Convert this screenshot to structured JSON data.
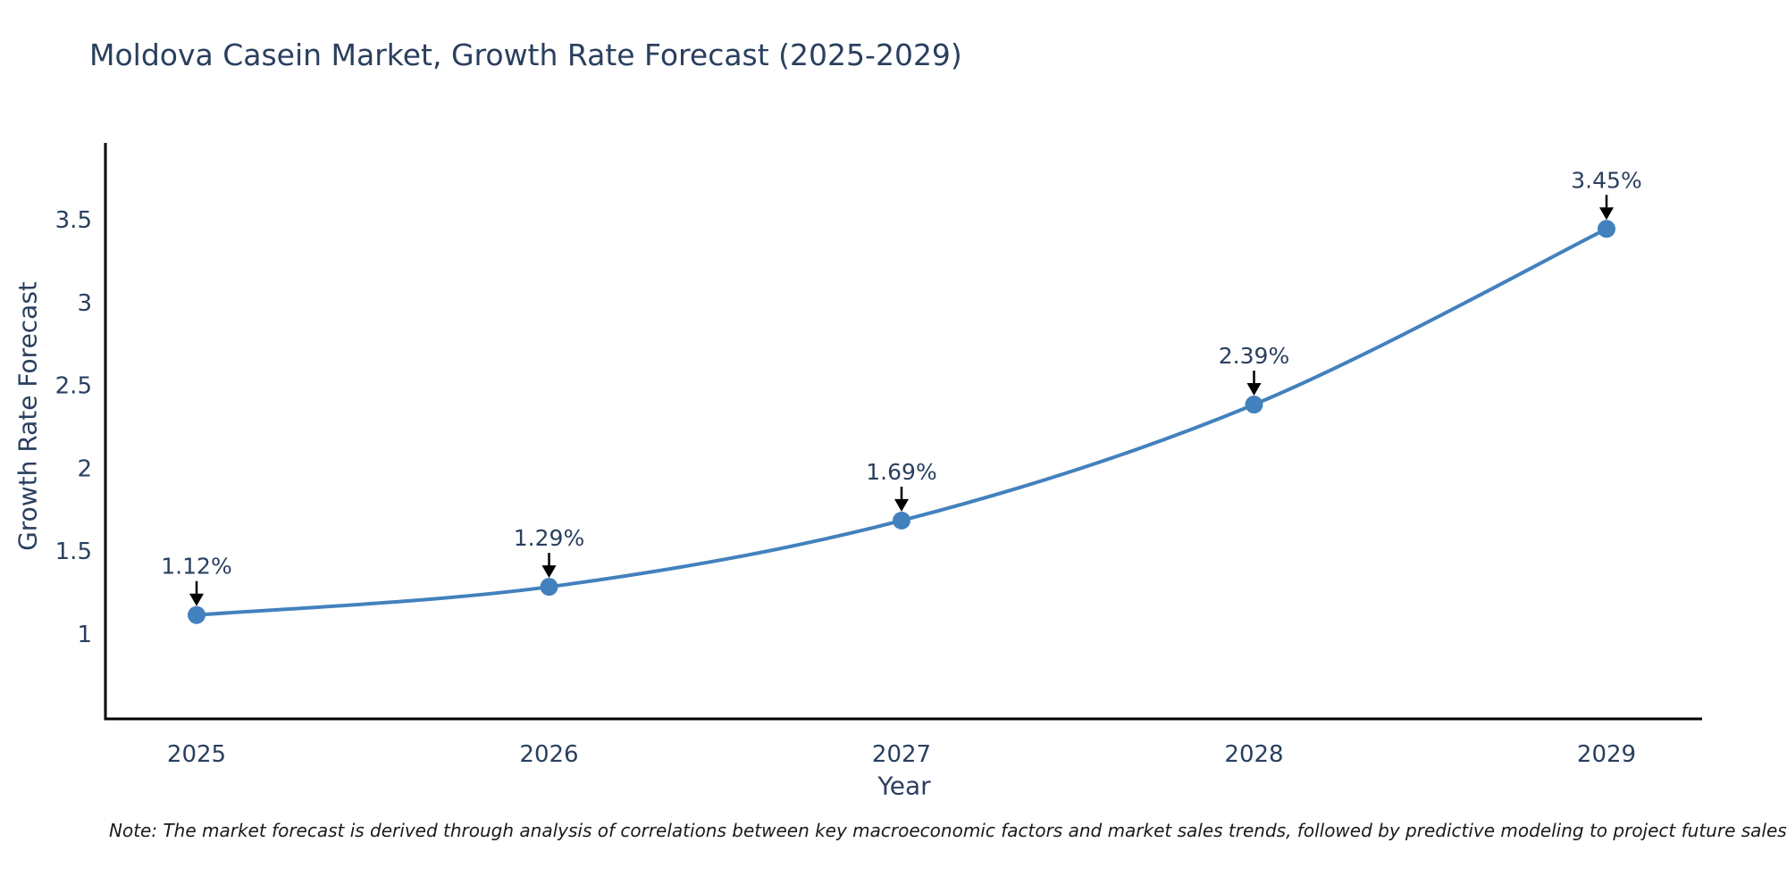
{
  "title": "Moldova Casein Market, Growth Rate Forecast (2025-2029)",
  "note": "Note: The market forecast is derived through analysis of correlations between key macroeconomic factors and market sales trends, followed by predictive modeling to project future sales",
  "chart_data": {
    "type": "line",
    "title": "Moldova Casein Market, Growth Rate Forecast (2025-2029)",
    "xlabel": "Year",
    "ylabel": "Growth Rate Forecast",
    "categories": [
      "2025",
      "2026",
      "2027",
      "2028",
      "2029"
    ],
    "series": [
      {
        "name": "Growth Rate Forecast",
        "values": [
          1.12,
          1.29,
          1.69,
          2.39,
          3.45
        ]
      }
    ],
    "point_labels": [
      "1.12%",
      "1.29%",
      "1.69%",
      "2.39%",
      "3.45%"
    ],
    "yticks": [
      1,
      1.5,
      2,
      2.5,
      3,
      3.5
    ],
    "ylim": [
      0.49,
      3.97
    ],
    "grid": false,
    "legend": "none",
    "line_style": "smooth",
    "marker": "circle",
    "colors": {
      "line": "#4281bd",
      "marker": "#4281bd",
      "annotation_arrow": "#000000",
      "text": "#2a3f5f",
      "axis": "#000000",
      "background": "#ffffff"
    }
  }
}
